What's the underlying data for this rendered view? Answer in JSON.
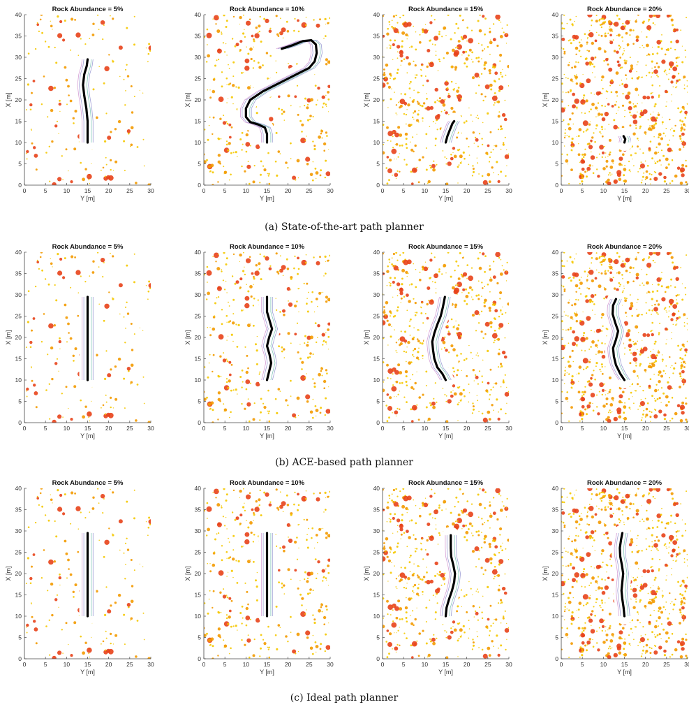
{
  "figure": {
    "captions": [
      "(a) State-of-the-art path planner",
      "(b) ACE-based path planner",
      "(c) Ideal path planner"
    ]
  },
  "colors": {
    "rock_small": "#f5c800",
    "rock_mid": "#f39a00",
    "rock_large": "#e8431a",
    "path": "#000000",
    "envelope_a": "#8888cc",
    "envelope_b": "#66bbaa",
    "envelope_c": "#cc88cc"
  },
  "chart_data": [
    {
      "type": "scatter",
      "row": 0,
      "col": 0,
      "title": "Rock Abundance = 5%",
      "xlabel": "Y [m]",
      "ylabel": "X [m]",
      "xlim": [
        0,
        30
      ],
      "ylim": [
        0,
        40
      ],
      "xticks": [
        "0",
        "5",
        "10",
        "15",
        "20",
        "25",
        "30"
      ],
      "yticks": [
        "0",
        "5",
        "10",
        "15",
        "20",
        "25",
        "30",
        "35",
        "40"
      ],
      "rock_abundance": 5,
      "path": [
        [
          15,
          10
        ],
        [
          15,
          15
        ],
        [
          14.7,
          18
        ],
        [
          14.2,
          21
        ],
        [
          13.9,
          23.5
        ],
        [
          14.2,
          26
        ],
        [
          14.8,
          28
        ],
        [
          15,
          29.5
        ]
      ]
    },
    {
      "type": "scatter",
      "row": 0,
      "col": 1,
      "title": "Rock Abundance = 10%",
      "xlabel": "Y [m]",
      "ylabel": "X [m]",
      "xlim": [
        0,
        30
      ],
      "ylim": [
        0,
        40
      ],
      "xticks": [
        "0",
        "5",
        "10",
        "15",
        "20",
        "25",
        "30"
      ],
      "yticks": [
        "0",
        "5",
        "10",
        "15",
        "20",
        "25",
        "30",
        "35",
        "40"
      ],
      "rock_abundance": 10,
      "path": [
        [
          15,
          10
        ],
        [
          15,
          12
        ],
        [
          14.5,
          13.5
        ],
        [
          13,
          14.2
        ],
        [
          11,
          14.8
        ],
        [
          10,
          16
        ],
        [
          10,
          18
        ],
        [
          11,
          20
        ],
        [
          14,
          22
        ],
        [
          17,
          23.5
        ],
        [
          20,
          25
        ],
        [
          23,
          26.5
        ],
        [
          25,
          27.5
        ],
        [
          26.3,
          29
        ],
        [
          26.8,
          31
        ],
        [
          26.6,
          33
        ],
        [
          25.5,
          34
        ],
        [
          23.5,
          33.8
        ],
        [
          21,
          32.8
        ],
        [
          18.5,
          32
        ]
      ]
    },
    {
      "type": "scatter",
      "row": 0,
      "col": 2,
      "title": "Rock Abundance = 15%",
      "xlabel": "Y [m]",
      "ylabel": "X [m]",
      "xlim": [
        0,
        30
      ],
      "ylim": [
        0,
        40
      ],
      "xticks": [
        "0",
        "5",
        "10",
        "15",
        "20",
        "25",
        "30"
      ],
      "yticks": [
        "0",
        "5",
        "10",
        "15",
        "20",
        "25",
        "30",
        "35",
        "40"
      ],
      "rock_abundance": 15,
      "path": [
        [
          15,
          10
        ],
        [
          15.4,
          11.5
        ],
        [
          16,
          13
        ],
        [
          16.6,
          14.5
        ],
        [
          17,
          15
        ]
      ]
    },
    {
      "type": "scatter",
      "row": 0,
      "col": 3,
      "title": "Rock Abundance = 20%",
      "xlabel": "Y [m]",
      "ylabel": "X [m]",
      "xlim": [
        0,
        30
      ],
      "ylim": [
        0,
        40
      ],
      "xticks": [
        "0",
        "5",
        "10",
        "15",
        "20",
        "25",
        "30"
      ],
      "yticks": [
        "0",
        "5",
        "10",
        "15",
        "20",
        "25",
        "30",
        "35",
        "40"
      ],
      "rock_abundance": 20,
      "path": [
        [
          15,
          10
        ],
        [
          15.2,
          10.8
        ],
        [
          14.8,
          11.5
        ]
      ]
    },
    {
      "type": "scatter",
      "row": 1,
      "col": 0,
      "title": "Rock Abundance = 5%",
      "xlabel": "Y [m]",
      "ylabel": "X [m]",
      "xlim": [
        0,
        30
      ],
      "ylim": [
        0,
        40
      ],
      "xticks": [
        "0",
        "5",
        "10",
        "15",
        "20",
        "25",
        "30"
      ],
      "yticks": [
        "0",
        "5",
        "10",
        "15",
        "20",
        "25",
        "30",
        "35",
        "40"
      ],
      "rock_abundance": 5,
      "path": [
        [
          15,
          10
        ],
        [
          15,
          15
        ],
        [
          15,
          20
        ],
        [
          15,
          25
        ],
        [
          15,
          29.5
        ]
      ]
    },
    {
      "type": "scatter",
      "row": 1,
      "col": 1,
      "title": "Rock Abundance = 10%",
      "xlabel": "Y [m]",
      "ylabel": "X [m]",
      "xlim": [
        0,
        30
      ],
      "ylim": [
        0,
        40
      ],
      "xticks": [
        "0",
        "5",
        "10",
        "15",
        "20",
        "25",
        "30"
      ],
      "yticks": [
        "0",
        "5",
        "10",
        "15",
        "20",
        "25",
        "30",
        "35",
        "40"
      ],
      "rock_abundance": 10,
      "path": [
        [
          15,
          10
        ],
        [
          15.5,
          12
        ],
        [
          16,
          14
        ],
        [
          15.6,
          16
        ],
        [
          15,
          18
        ],
        [
          15.5,
          20
        ],
        [
          16.2,
          22
        ],
        [
          15.6,
          24
        ],
        [
          15,
          26
        ],
        [
          15,
          29.5
        ]
      ]
    },
    {
      "type": "scatter",
      "row": 1,
      "col": 2,
      "title": "Rock Abundance = 15%",
      "xlabel": "Y [m]",
      "ylabel": "X [m]",
      "xlim": [
        0,
        30
      ],
      "ylim": [
        0,
        40
      ],
      "xticks": [
        "0",
        "5",
        "10",
        "15",
        "20",
        "25",
        "30"
      ],
      "yticks": [
        "0",
        "5",
        "10",
        "15",
        "20",
        "25",
        "30",
        "35",
        "40"
      ],
      "rock_abundance": 15,
      "path": [
        [
          15,
          10
        ],
        [
          14.2,
          11.5
        ],
        [
          13,
          13
        ],
        [
          12.3,
          15
        ],
        [
          12,
          17
        ],
        [
          11.8,
          19
        ],
        [
          12.3,
          21
        ],
        [
          13,
          23
        ],
        [
          13.8,
          25
        ],
        [
          14.3,
          27
        ],
        [
          14.8,
          29.5
        ]
      ]
    },
    {
      "type": "scatter",
      "row": 1,
      "col": 3,
      "title": "Rock Abundance = 20%",
      "xlabel": "Y [m]",
      "ylabel": "X [m]",
      "xlim": [
        0,
        30
      ],
      "ylim": [
        0,
        40
      ],
      "xticks": [
        "0",
        "5",
        "10",
        "15",
        "20",
        "25",
        "30"
      ],
      "yticks": [
        "0",
        "5",
        "10",
        "15",
        "20",
        "25",
        "30",
        "35",
        "40"
      ],
      "rock_abundance": 20,
      "path": [
        [
          15,
          10
        ],
        [
          14,
          11.5
        ],
        [
          13,
          13.5
        ],
        [
          12.5,
          15.5
        ],
        [
          12.3,
          17.5
        ],
        [
          13,
          19.5
        ],
        [
          13.5,
          21.5
        ],
        [
          12.8,
          23.5
        ],
        [
          12.2,
          25.5
        ],
        [
          12.3,
          27.5
        ],
        [
          13,
          29
        ]
      ]
    },
    {
      "type": "scatter",
      "row": 2,
      "col": 0,
      "title": "Rock Abundance = 5%",
      "xlabel": "Y [m]",
      "ylabel": "X [m]",
      "xlim": [
        0,
        30
      ],
      "ylim": [
        0,
        40
      ],
      "xticks": [
        "0",
        "5",
        "10",
        "15",
        "20",
        "25",
        "30"
      ],
      "yticks": [
        "0",
        "5",
        "10",
        "15",
        "20",
        "25",
        "30",
        "35",
        "40"
      ],
      "rock_abundance": 5,
      "path": [
        [
          15,
          10
        ],
        [
          15,
          15
        ],
        [
          15,
          20
        ],
        [
          15,
          25
        ],
        [
          15,
          29.5
        ]
      ]
    },
    {
      "type": "scatter",
      "row": 2,
      "col": 1,
      "title": "Rock Abundance = 10%",
      "xlabel": "Y [m]",
      "ylabel": "X [m]",
      "xlim": [
        0,
        30
      ],
      "ylim": [
        0,
        40
      ],
      "xticks": [
        "0",
        "5",
        "10",
        "15",
        "20",
        "25",
        "30"
      ],
      "yticks": [
        "0",
        "5",
        "10",
        "15",
        "20",
        "25",
        "30",
        "35",
        "40"
      ],
      "rock_abundance": 10,
      "path": [
        [
          15,
          10
        ],
        [
          15,
          15
        ],
        [
          15,
          20
        ],
        [
          15,
          25
        ],
        [
          15,
          29.5
        ]
      ]
    },
    {
      "type": "scatter",
      "row": 2,
      "col": 2,
      "title": "Rock Abundance = 15%",
      "xlabel": "Y [m]",
      "ylabel": "X [m]",
      "xlim": [
        0,
        30
      ],
      "ylim": [
        0,
        40
      ],
      "xticks": [
        "0",
        "5",
        "10",
        "15",
        "20",
        "25",
        "30"
      ],
      "yticks": [
        "0",
        "5",
        "10",
        "15",
        "20",
        "25",
        "30",
        "35",
        "40"
      ],
      "rock_abundance": 15,
      "path": [
        [
          15,
          10
        ],
        [
          15.2,
          12
        ],
        [
          15.8,
          14
        ],
        [
          16.5,
          16
        ],
        [
          17,
          18
        ],
        [
          17.2,
          20
        ],
        [
          16.8,
          22
        ],
        [
          16.3,
          24
        ],
        [
          16.2,
          26
        ],
        [
          16.2,
          29
        ]
      ]
    },
    {
      "type": "scatter",
      "row": 2,
      "col": 3,
      "title": "Rock Abundance = 20%",
      "xlabel": "Y [m]",
      "ylabel": "X [m]",
      "xlim": [
        0,
        30
      ],
      "ylim": [
        0,
        40
      ],
      "xticks": [
        "0",
        "5",
        "10",
        "15",
        "20",
        "25",
        "30"
      ],
      "yticks": [
        "0",
        "5",
        "10",
        "15",
        "20",
        "25",
        "30",
        "35",
        "40"
      ],
      "rock_abundance": 20,
      "path": [
        [
          15,
          10
        ],
        [
          14.8,
          12
        ],
        [
          14.5,
          14
        ],
        [
          14.3,
          16
        ],
        [
          14.5,
          18
        ],
        [
          14.7,
          20
        ],
        [
          14.4,
          22
        ],
        [
          14,
          24
        ],
        [
          13.9,
          26
        ],
        [
          14.2,
          28
        ],
        [
          14.5,
          29.5
        ]
      ]
    }
  ]
}
